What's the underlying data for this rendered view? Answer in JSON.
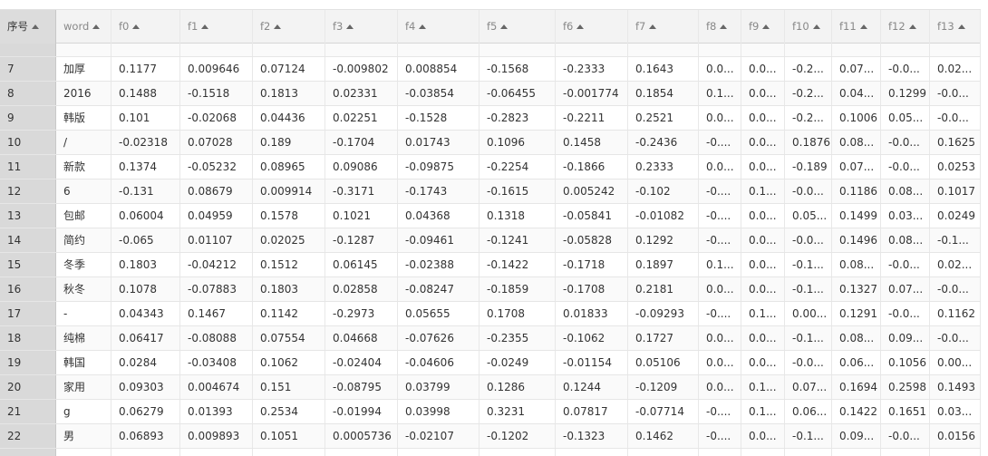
{
  "table": {
    "columns": [
      "序号",
      "word",
      "f0",
      "f1",
      "f2",
      "f3",
      "f4",
      "f5",
      "f6",
      "f7",
      "f8",
      "f9",
      "f10",
      "f11",
      "f12",
      "f13"
    ],
    "rows": [
      [
        "7",
        "加厚",
        "0.1177",
        "0.009646",
        "0.07124",
        "-0.009802",
        "0.008854",
        "-0.1568",
        "-0.2333",
        "0.1643",
        "0.0...",
        "0.0...",
        "-0.2...",
        "0.07...",
        "-0.0...",
        "0.02..."
      ],
      [
        "8",
        "2016",
        "0.1488",
        "-0.1518",
        "0.1813",
        "0.02331",
        "-0.03854",
        "-0.06455",
        "-0.001774",
        "0.1854",
        "0.1...",
        "0.0...",
        "-0.2...",
        "0.04...",
        "0.1299",
        "-0.0..."
      ],
      [
        "9",
        "韩版",
        "0.101",
        "-0.02068",
        "0.04436",
        "0.02251",
        "-0.1528",
        "-0.2823",
        "-0.2211",
        "0.2521",
        "0.0...",
        "0.0...",
        "-0.2...",
        "0.1006",
        "0.05...",
        "-0.0..."
      ],
      [
        "10",
        "/",
        "-0.02318",
        "0.07028",
        "0.189",
        "-0.1704",
        "0.01743",
        "0.1096",
        "0.1458",
        "-0.2436",
        "-0....",
        "0.0...",
        "0.1876",
        "0.08...",
        "-0.0...",
        "0.1625"
      ],
      [
        "11",
        "新款",
        "0.1374",
        "-0.05232",
        "0.08965",
        "0.09086",
        "-0.09875",
        "-0.2254",
        "-0.1866",
        "0.2333",
        "0.0...",
        "0.0...",
        "-0.189",
        "0.07...",
        "-0.0...",
        "0.0253"
      ],
      [
        "12",
        "6",
        "-0.131",
        "0.08679",
        "0.009914",
        "-0.3171",
        "-0.1743",
        "-0.1615",
        "0.005242",
        "-0.102",
        "-0....",
        "0.1...",
        "-0.0...",
        "0.1186",
        "0.08...",
        "0.1017"
      ],
      [
        "13",
        "包邮",
        "0.06004",
        "0.04959",
        "0.1578",
        "0.1021",
        "0.04368",
        "0.1318",
        "-0.05841",
        "-0.01082",
        "-0....",
        "0.0...",
        "0.05...",
        "0.1499",
        "0.03...",
        "0.0249"
      ],
      [
        "14",
        "简约",
        "-0.065",
        "0.01107",
        "0.02025",
        "-0.1287",
        "-0.09461",
        "-0.1241",
        "-0.05828",
        "0.1292",
        "-0....",
        "0.0...",
        "-0.0...",
        "0.1496",
        "0.08...",
        "-0.1..."
      ],
      [
        "15",
        "冬季",
        "0.1803",
        "-0.04212",
        "0.1512",
        "0.06145",
        "-0.02388",
        "-0.1422",
        "-0.1718",
        "0.1897",
        "0.1...",
        "0.0...",
        "-0.1...",
        "0.08...",
        "-0.0...",
        "0.02..."
      ],
      [
        "16",
        "秋冬",
        "0.1078",
        "-0.07883",
        "0.1803",
        "0.02858",
        "-0.08247",
        "-0.1859",
        "-0.1708",
        "0.2181",
        "0.0...",
        "0.0...",
        "-0.1...",
        "0.1327",
        "0.07...",
        "-0.0..."
      ],
      [
        "17",
        "-",
        "0.04343",
        "0.1467",
        "0.1142",
        "-0.2973",
        "0.05655",
        "0.1708",
        "0.01833",
        "-0.09293",
        "-0....",
        "0.1...",
        "0.00...",
        "0.1291",
        "-0.0...",
        "0.1162"
      ],
      [
        "18",
        "纯棉",
        "0.06417",
        "-0.08088",
        "0.07554",
        "0.04668",
        "-0.07626",
        "-0.2355",
        "-0.1062",
        "0.1727",
        "0.0...",
        "0.0...",
        "-0.1...",
        "0.08...",
        "0.09...",
        "-0.0..."
      ],
      [
        "19",
        "韩国",
        "0.0284",
        "-0.03408",
        "0.1062",
        "-0.02404",
        "-0.04606",
        "-0.0249",
        "-0.01154",
        "0.05106",
        "0.0...",
        "0.0...",
        "-0.0...",
        "0.06...",
        "0.1056",
        "0.00..."
      ],
      [
        "20",
        "家用",
        "0.09303",
        "0.004674",
        "0.151",
        "-0.08795",
        "0.03799",
        "0.1286",
        "0.1244",
        "-0.1209",
        "0.0...",
        "0.1...",
        "0.07...",
        "0.1694",
        "0.2598",
        "0.1493"
      ],
      [
        "21",
        "g",
        "0.06279",
        "0.01393",
        "0.2534",
        "-0.01994",
        "0.03998",
        "0.3231",
        "0.07817",
        "-0.07714",
        "-0....",
        "0.1...",
        "0.06...",
        "0.1422",
        "0.1651",
        "0.03..."
      ],
      [
        "22",
        "男",
        "0.06893",
        "0.009893",
        "0.1051",
        "0.0005736",
        "-0.02107",
        "-0.1202",
        "-0.1323",
        "0.1462",
        "-0....",
        "0.0...",
        "-0.1...",
        "0.09...",
        "-0.0...",
        "0.0156"
      ]
    ]
  }
}
